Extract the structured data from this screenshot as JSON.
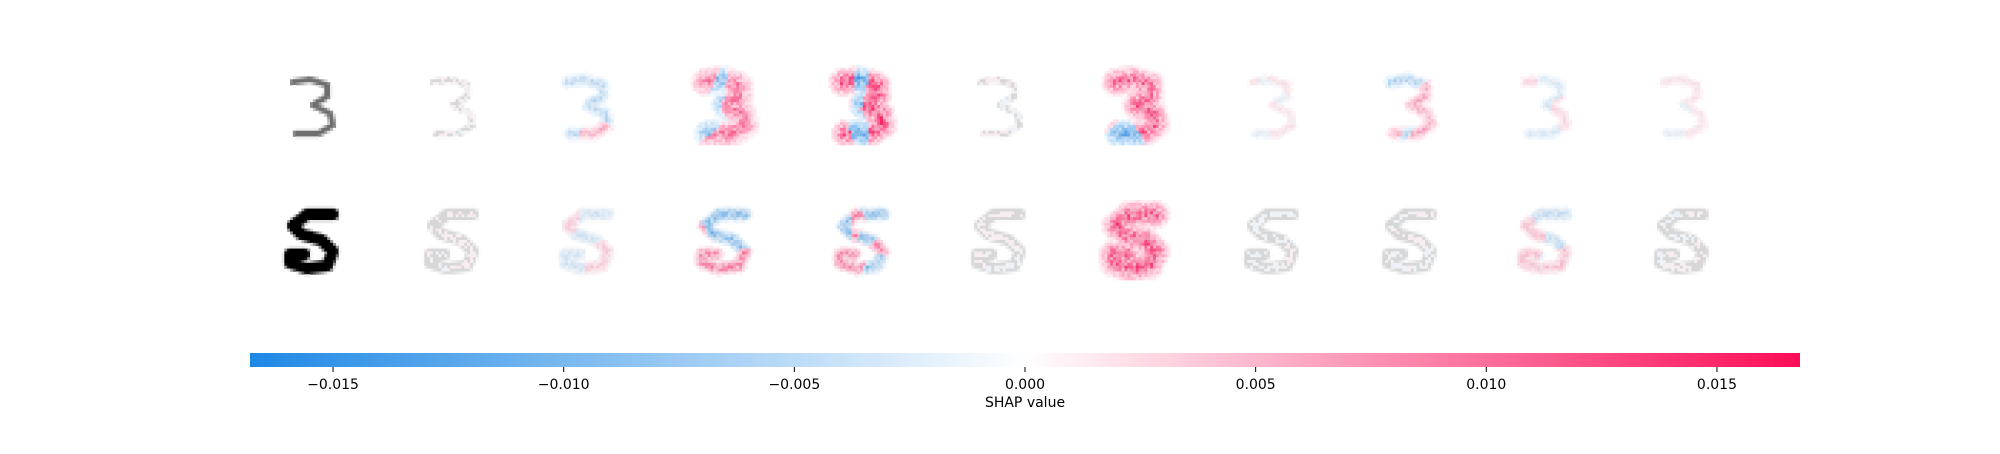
{
  "chart_data": {
    "type": "heatmap",
    "colormap": {
      "negative": "#1E88E5",
      "zero": "#FFFFFF",
      "positive": "#FF0D57"
    },
    "colorbar": {
      "label": "SHAP value",
      "vmin": -0.0168,
      "vmax": 0.0168,
      "ticks": [
        -0.015,
        -0.01,
        -0.005,
        0.0,
        0.005,
        0.01,
        0.015
      ],
      "tick_labels": [
        "−0.015",
        "−0.010",
        "−0.005",
        "0.000",
        "0.005",
        "0.010",
        "0.015"
      ]
    },
    "rows": [
      {
        "input_digit": "3",
        "input_ink": "gray",
        "panels": [
          {
            "class_index": 0,
            "shap_pattern": "faint",
            "max_abs": 0.001
          },
          {
            "class_index": 1,
            "shap_pattern": "mixed",
            "max_abs": 0.006
          },
          {
            "class_index": 2,
            "shap_pattern": "mixed-strong",
            "max_abs": 0.012
          },
          {
            "class_index": 3,
            "shap_pattern": "mixed-strong",
            "max_abs": 0.016
          },
          {
            "class_index": 4,
            "shap_pattern": "faint",
            "max_abs": 0.001
          },
          {
            "class_index": 5,
            "shap_pattern": "mixed-strong",
            "max_abs": 0.014
          },
          {
            "class_index": 6,
            "shap_pattern": "faint",
            "max_abs": 0.002
          },
          {
            "class_index": 7,
            "shap_pattern": "mixed",
            "max_abs": 0.007
          },
          {
            "class_index": 8,
            "shap_pattern": "weak",
            "max_abs": 0.003
          },
          {
            "class_index": 9,
            "shap_pattern": "faint",
            "max_abs": 0.002
          }
        ]
      },
      {
        "input_digit": "5",
        "input_ink": "black",
        "panels": [
          {
            "class_index": 0,
            "shap_pattern": "faint",
            "max_abs": 0.001
          },
          {
            "class_index": 1,
            "shap_pattern": "weak",
            "max_abs": 0.004
          },
          {
            "class_index": 2,
            "shap_pattern": "mixed",
            "max_abs": 0.011
          },
          {
            "class_index": 3,
            "shap_pattern": "mixed",
            "max_abs": 0.01
          },
          {
            "class_index": 4,
            "shap_pattern": "faint",
            "max_abs": 0.001
          },
          {
            "class_index": 5,
            "shap_pattern": "positive-strong",
            "max_abs": 0.015
          },
          {
            "class_index": 6,
            "shap_pattern": "faint",
            "max_abs": 0.001
          },
          {
            "class_index": 7,
            "shap_pattern": "faint",
            "max_abs": 0.001
          },
          {
            "class_index": 8,
            "shap_pattern": "weak",
            "max_abs": 0.005
          },
          {
            "class_index": 9,
            "shap_pattern": "faint",
            "max_abs": 0.001
          }
        ]
      }
    ]
  }
}
